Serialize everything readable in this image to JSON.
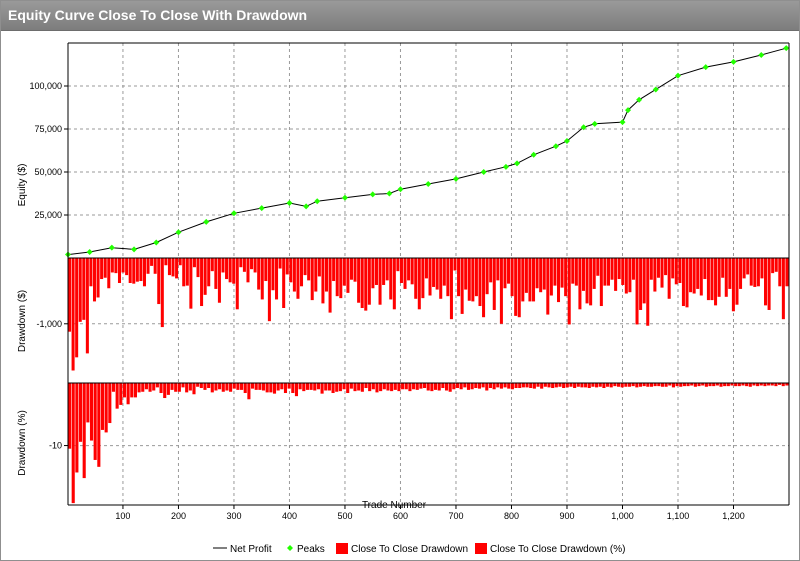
{
  "window": {
    "title": "Equity Curve Close To Close With Drawdown"
  },
  "colors": {
    "net_profit": "#000000",
    "peaks": "#22ff00",
    "drawdown": "#ff0000",
    "grid": "#9a9a9a"
  },
  "chart_data": [
    {
      "type": "line",
      "panel": "equity",
      "ylabel": "Equity ($)",
      "ylim": [
        0,
        125000
      ],
      "yticks": [
        25000,
        50000,
        75000,
        100000
      ],
      "ytick_labels": [
        "25,000",
        "50,000",
        "75,000",
        "100,000"
      ],
      "x": [
        1,
        40,
        80,
        120,
        160,
        200,
        250,
        300,
        350,
        400,
        430,
        450,
        500,
        550,
        580,
        600,
        650,
        700,
        750,
        790,
        810,
        840,
        880,
        900,
        930,
        950,
        1000,
        1010,
        1030,
        1060,
        1100,
        1150,
        1200,
        1250,
        1295
      ],
      "series": [
        {
          "name": "Net Profit",
          "values": [
            2000,
            3500,
            6000,
            5000,
            9000,
            15000,
            21000,
            26000,
            29000,
            32000,
            30000,
            33000,
            35000,
            37000,
            37500,
            40000,
            43000,
            46000,
            50000,
            53000,
            55000,
            60000,
            65000,
            68000,
            76000,
            78000,
            79000,
            86000,
            92000,
            98000,
            106000,
            111000,
            114000,
            118000,
            122000
          ]
        },
        {
          "name": "Peaks",
          "values": [
            2000,
            3500,
            6000,
            5000,
            9000,
            15000,
            21000,
            26000,
            29000,
            32000,
            30000,
            33000,
            35000,
            37000,
            37500,
            40000,
            43000,
            46000,
            50000,
            53000,
            55000,
            60000,
            65000,
            68000,
            76000,
            78000,
            79000,
            86000,
            92000,
            98000,
            106000,
            111000,
            114000,
            118000,
            122000
          ]
        }
      ]
    },
    {
      "type": "area",
      "panel": "drawdown_dollars",
      "ylabel": "Drawdown ($)",
      "ylim": [
        -1900,
        0
      ],
      "yticks": [
        -1000
      ],
      "ytick_labels": [
        "-1,000"
      ],
      "series": [
        {
          "name": "Close To Close Drawdown",
          "values": [
            -1120,
            -1710,
            -1510,
            -970,
            -940,
            -1450,
            -430,
            -660,
            -600,
            -320,
            -300,
            -460,
            -220,
            -230,
            -380,
            -220,
            -260,
            -380,
            -390,
            -360,
            -350,
            -430,
            -240,
            -120,
            -240,
            -700,
            -1050,
            -110,
            -260,
            -280,
            -310,
            -110,
            -430,
            -420,
            -770,
            -140,
            -290,
            -730,
            -560,
            -430,
            -200,
            -470,
            -680,
            -220,
            -320,
            -370,
            -390,
            -780,
            -140,
            -210,
            -370,
            -170,
            -220,
            -480,
            -630,
            -350,
            -960,
            -490,
            -630,
            -160,
            -760,
            -250,
            -370,
            -510,
            -620,
            -430,
            -260,
            -340,
            -640,
            -510,
            -280,
            -690,
            -510,
            -830,
            -350,
            -580,
            -610,
            -420,
            -530,
            -330,
            -360,
            -680,
            -760,
            -800,
            -710,
            -460,
            -410,
            -710,
            -410,
            -340,
            -630,
            -780,
            -200,
            -380,
            -470,
            -340,
            -400,
            -620,
            -780,
            -610,
            -310,
            -570,
            -440,
            -480,
            -620,
            -420,
            -580,
            -930,
            -190,
            -580,
            -850,
            -480,
            -650,
            -660,
            -580,
            -730,
            -900,
            -550,
            -370,
            -790,
            -340,
            -1000,
            -460,
            -390,
            -580,
            -880,
            -900,
            -660,
            -530,
            -660,
            -660,
            -460,
            -520,
            -480,
            -860,
            -570,
            -420,
            -670,
            -450,
            -580,
            -1010,
            -390,
            -420,
            -780,
            -500,
            -690,
            -720,
            -470,
            -270,
            -730,
            -420,
            -420,
            -330,
            -500,
            -320,
            -410,
            -540,
            -520,
            -330,
            -1010,
            -790,
            -690,
            -1030,
            -330,
            -510,
            -300,
            -450,
            -260,
            -620,
            -310,
            -400,
            -380,
            -730,
            -750,
            -520,
            -540,
            -470,
            -570,
            -320,
            -640,
            -640,
            -720,
            -590,
            -300,
            -590,
            -470,
            -810,
            -710,
            -470,
            -310,
            -250,
            -420,
            -440,
            -430,
            -310,
            -720,
            -790,
            -230,
            -210,
            -430,
            -930,
            -430
          ]
        }
      ]
    },
    {
      "type": "area",
      "panel": "drawdown_percent",
      "ylabel": "Drawdown (%)",
      "ylim": [
        -19.5,
        0
      ],
      "yticks": [
        -10
      ],
      "ytick_labels": [
        "-10"
      ],
      "series": [
        {
          "name": "Close To Close Drawdown (%)",
          "values": [
            -10.5,
            -19.2,
            -14.3,
            -9.4,
            -15.2,
            -6.3,
            -9.2,
            -12.3,
            -13.4,
            -7.5,
            -7.9,
            -6.4,
            -1.4,
            -4.1,
            -3.5,
            -2.3,
            -3.4,
            -2.3,
            -2.3,
            -1.5,
            -1.4,
            -1.0,
            -1.4,
            -1.2,
            -0.7,
            -1.6,
            -2.4,
            -1.9,
            -1.1,
            -1.4,
            -1.4,
            -0.7,
            -1.5,
            -1.2,
            -1.8,
            -0.6,
            -0.8,
            -1.1,
            -0.8,
            -1.5,
            -1.2,
            -1.0,
            -1.4,
            -1.2,
            -1.4,
            -0.9,
            -1.1,
            -1.1,
            -1.6,
            -2.6,
            -0.9,
            -1.1,
            -1.1,
            -1.2,
            -1.5,
            -1.5,
            -1.7,
            -1.2,
            -1.0,
            -1.6,
            -0.9,
            -1.6,
            -2.1,
            -1.0,
            -1.3,
            -1.1,
            -1.1,
            -1.2,
            -1.0,
            -1.7,
            -1.2,
            -1.2,
            -1.6,
            -1.4,
            -1.3,
            -1.0,
            -1.6,
            -0.9,
            -1.3,
            -1.2,
            -1.4,
            -0.8,
            -1.3,
            -1.0,
            -1.5,
            -1.3,
            -1.0,
            -1.2,
            -1.3,
            -1.1,
            -1.3,
            -1.0,
            -1.0,
            -1.3,
            -1.0,
            -1.1,
            -0.9,
            -0.8,
            -1.2,
            -1.3,
            -1.1,
            -1.2,
            -0.8,
            -1.2,
            -1.4,
            -1.0,
            -0.8,
            -1.0,
            -0.7,
            -1.1,
            -1.0,
            -0.8,
            -0.9,
            -0.7,
            -1.2,
            -0.8,
            -1.0,
            -0.7,
            -0.9,
            -0.7,
            -0.9,
            -1.0,
            -0.8,
            -0.8,
            -0.7,
            -0.7,
            -0.8,
            -0.9,
            -0.6,
            -0.9,
            -0.6,
            -0.7,
            -0.8,
            -0.7,
            -0.6,
            -0.8,
            -0.7,
            -0.6,
            -0.8,
            -0.6,
            -0.7,
            -0.7,
            -0.8,
            -0.6,
            -0.7,
            -0.6,
            -0.8,
            -0.6,
            -0.7,
            -0.5,
            -0.6,
            -0.7,
            -0.6,
            -0.6,
            -0.5,
            -0.7,
            -0.6,
            -0.5,
            -0.6,
            -0.6,
            -0.5,
            -0.5,
            -0.6,
            -0.6,
            -0.4,
            -0.7,
            -0.5,
            -0.6,
            -0.5,
            -0.5,
            -0.4,
            -0.6,
            -0.5,
            -0.4,
            -0.6,
            -0.5,
            -0.5,
            -0.4,
            -0.6,
            -0.5,
            -0.5,
            -0.4,
            -0.5,
            -0.5,
            -0.4,
            -0.5,
            -0.6,
            -0.4,
            -0.5,
            -0.4,
            -0.5,
            -0.4,
            -0.4,
            -0.5,
            -0.3,
            -0.5,
            -0.4
          ]
        }
      ]
    }
  ],
  "x_axis": {
    "label": "Trade Number",
    "xlim": [
      1,
      1300
    ],
    "ticks": [
      100,
      200,
      300,
      400,
      500,
      600,
      700,
      800,
      900,
      1000,
      1100,
      1200
    ],
    "tick_labels": [
      "100",
      "200",
      "300",
      "400",
      "500",
      "600",
      "700",
      "800",
      "900",
      "1,000",
      "1,100",
      "1,200"
    ]
  },
  "legend": {
    "placement": "bottom",
    "items": [
      {
        "label": "Net Profit",
        "marker": "line"
      },
      {
        "label": "Peaks",
        "marker": "diamond"
      },
      {
        "label": "Close To Close Drawdown",
        "marker": "box"
      },
      {
        "label": "Close To Close Drawdown (%)",
        "marker": "box"
      }
    ]
  }
}
